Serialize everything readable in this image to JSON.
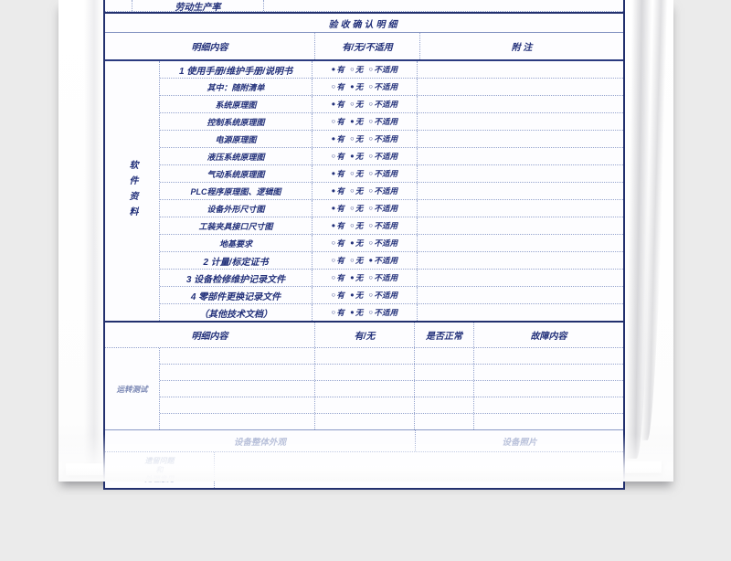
{
  "page": {
    "background": "#ebebeb",
    "accent": "#22307a",
    "border_dark": "#22306e",
    "border_dotted": "#94a3cd"
  },
  "top_row": {
    "label": "劳动生产率"
  },
  "title": "验收确认明细",
  "section1": {
    "headers": {
      "content": "明细内容",
      "options": "有/无/不适用",
      "note": "附        注"
    },
    "side_label": "软件资料",
    "choices": [
      "有",
      "无",
      "不适用"
    ],
    "rows": [
      {
        "label": "1 使用手册/维护手册/说明书",
        "selected": 0,
        "emphasis": true
      },
      {
        "label": "其中：随附清单",
        "selected": 1,
        "emphasis": false
      },
      {
        "label": "系统原理图",
        "selected": 0,
        "emphasis": false
      },
      {
        "label": "控制系统原理图",
        "selected": 1,
        "emphasis": false
      },
      {
        "label": "电源原理图",
        "selected": 0,
        "emphasis": false
      },
      {
        "label": "液压系统原理图",
        "selected": 1,
        "emphasis": false
      },
      {
        "label": "气动系统原理图",
        "selected": 0,
        "emphasis": false
      },
      {
        "label": "PLC程序原理图、逻辑图",
        "selected": 0,
        "emphasis": false
      },
      {
        "label": "设备外形尺寸图",
        "selected": 0,
        "emphasis": false
      },
      {
        "label": "工装夹具接口尺寸图",
        "selected": 0,
        "emphasis": false
      },
      {
        "label": "地基要求",
        "selected": 1,
        "emphasis": false
      },
      {
        "label": "2 计量/标定证书",
        "selected": 2,
        "emphasis": true
      },
      {
        "label": "3 设备检修维护记录文件",
        "selected": 1,
        "emphasis": true
      },
      {
        "label": "4 零部件更换记录文件",
        "selected": 1,
        "emphasis": true
      },
      {
        "label": "（其他技术文档）",
        "selected": 1,
        "emphasis": true
      }
    ]
  },
  "section2": {
    "headers": {
      "content": "明细内容",
      "youwu": "有/无",
      "normal": "是否正常",
      "fault": "故障内容"
    },
    "side_label": "运转测试",
    "empty_row_count": 5
  },
  "footer": {
    "appearance_label": "设备整体外观",
    "photo_label": "设备照片",
    "issues_label_lines": [
      "遗留问题",
      "和",
      "处理意见"
    ]
  },
  "radio_glyphs": {
    "selected": "●",
    "unselected": "○"
  }
}
